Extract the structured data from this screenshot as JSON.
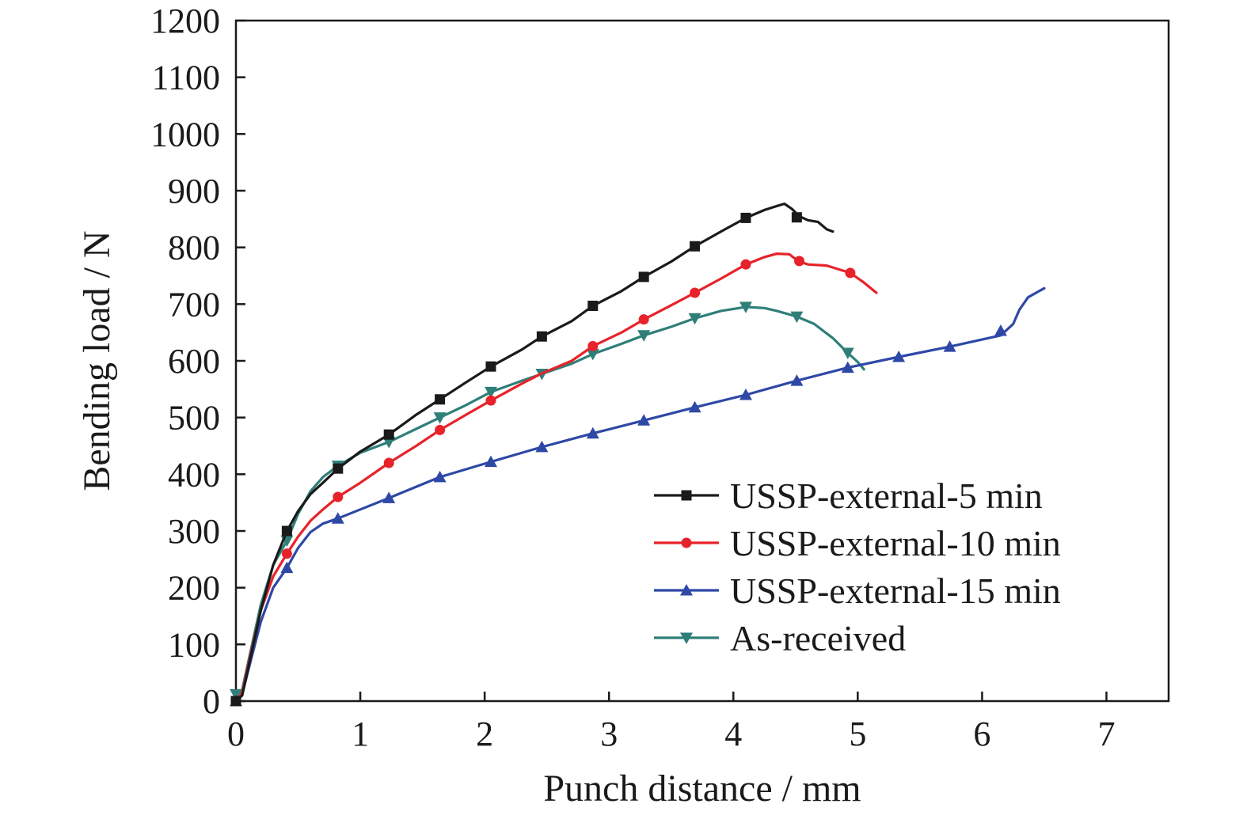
{
  "chart_data": {
    "type": "line",
    "title": "",
    "xlabel": "Punch distance / mm",
    "ylabel": "Bending load / N",
    "xlim": [
      0,
      7.5
    ],
    "ylim": [
      0,
      1200
    ],
    "x_ticks": [
      0,
      1,
      2,
      3,
      4,
      5,
      6,
      7
    ],
    "x_tick_labels": [
      "0",
      "1",
      "2",
      "3",
      "4",
      "5",
      "6",
      "7"
    ],
    "y_ticks": [
      0,
      100,
      200,
      300,
      400,
      500,
      600,
      700,
      800,
      900,
      1000,
      1100,
      1200
    ],
    "y_tick_labels": [
      "0",
      "100",
      "200",
      "300",
      "400",
      "500",
      "600",
      "700",
      "800",
      "900",
      "1000",
      "1100",
      "1200"
    ],
    "grid": false,
    "legend_position": "bottom-right",
    "series": [
      {
        "name": "USSP-external-5 min",
        "color": "#1a1a1a",
        "marker": "square",
        "x": [
          0,
          0.05,
          0.1,
          0.2,
          0.3,
          0.41,
          0.5,
          0.6,
          0.7,
          0.82,
          1.0,
          1.23,
          1.45,
          1.64,
          1.85,
          2.05,
          2.3,
          2.46,
          2.7,
          2.87,
          3.1,
          3.28,
          3.5,
          3.69,
          3.9,
          4.1,
          4.25,
          4.35,
          4.41,
          4.47,
          4.53,
          4.6,
          4.68,
          4.75,
          4.8
        ],
        "y": [
          0,
          10,
          60,
          160,
          240,
          300,
          335,
          365,
          385,
          410,
          440,
          470,
          505,
          532,
          562,
          590,
          620,
          643,
          670,
          697,
          723,
          748,
          775,
          802,
          828,
          852,
          866,
          873,
          877,
          868,
          855,
          848,
          845,
          832,
          828
        ],
        "marker_x": [
          0,
          0.41,
          0.82,
          1.23,
          1.64,
          2.05,
          2.46,
          2.87,
          3.28,
          3.69,
          4.1,
          4.51
        ],
        "marker_y": [
          0,
          300,
          410,
          470,
          532,
          590,
          643,
          697,
          748,
          802,
          852,
          853
        ]
      },
      {
        "name": "USSP-external-10 min",
        "color": "#e8222a",
        "marker": "circle",
        "x": [
          0,
          0.05,
          0.1,
          0.2,
          0.3,
          0.41,
          0.5,
          0.6,
          0.7,
          0.82,
          1.0,
          1.23,
          1.45,
          1.64,
          1.85,
          2.05,
          2.3,
          2.46,
          2.7,
          2.87,
          3.1,
          3.28,
          3.5,
          3.69,
          3.9,
          4.1,
          4.25,
          4.35,
          4.45,
          4.52,
          4.6,
          4.75,
          4.94,
          5.05,
          5.15
        ],
        "y": [
          0,
          15,
          65,
          160,
          220,
          260,
          290,
          318,
          338,
          360,
          385,
          420,
          450,
          478,
          505,
          530,
          560,
          578,
          600,
          626,
          650,
          673,
          698,
          720,
          745,
          770,
          783,
          789,
          788,
          776,
          770,
          768,
          755,
          738,
          720
        ],
        "marker_x": [
          0,
          0.41,
          0.82,
          1.23,
          1.64,
          2.05,
          2.87,
          3.28,
          3.69,
          4.1,
          4.53,
          4.94
        ],
        "marker_y": [
          0,
          260,
          360,
          420,
          478,
          530,
          626,
          673,
          720,
          770,
          776,
          755
        ]
      },
      {
        "name": "USSP-external-15 min",
        "color": "#2e48a6",
        "marker": "triangle-up",
        "x": [
          0,
          0.05,
          0.1,
          0.2,
          0.3,
          0.41,
          0.5,
          0.6,
          0.7,
          0.82,
          1.0,
          1.23,
          1.45,
          1.64,
          2.05,
          2.46,
          2.87,
          3.28,
          3.69,
          4.1,
          4.51,
          4.92,
          5.33,
          5.74,
          6.15,
          6.25,
          6.3,
          6.37,
          6.45,
          6.5
        ],
        "y": [
          0,
          12,
          55,
          140,
          200,
          235,
          270,
          298,
          313,
          322,
          338,
          358,
          378,
          395,
          422,
          448,
          472,
          495,
          518,
          540,
          565,
          588,
          607,
          625,
          645,
          665,
          690,
          712,
          722,
          728
        ],
        "marker_x": [
          0,
          0.41,
          0.82,
          1.23,
          1.64,
          2.05,
          2.46,
          2.87,
          3.28,
          3.69,
          4.1,
          4.51,
          4.92,
          5.33,
          5.74,
          6.15
        ],
        "marker_y": [
          0,
          235,
          322,
          358,
          395,
          422,
          448,
          472,
          495,
          518,
          540,
          565,
          588,
          607,
          625,
          653
        ]
      },
      {
        "name": "As-received",
        "color": "#2f7f78",
        "marker": "triangle-down",
        "x": [
          0,
          0.05,
          0.1,
          0.2,
          0.3,
          0.41,
          0.5,
          0.6,
          0.7,
          0.82,
          1.0,
          1.23,
          1.45,
          1.64,
          1.85,
          2.05,
          2.3,
          2.46,
          2.7,
          2.87,
          3.1,
          3.28,
          3.5,
          3.69,
          3.9,
          4.1,
          4.25,
          4.35,
          4.51,
          4.65,
          4.8,
          4.92,
          5.0,
          5.05
        ],
        "y": [
          10,
          20,
          70,
          170,
          240,
          283,
          330,
          370,
          395,
          415,
          438,
          457,
          480,
          500,
          522,
          545,
          565,
          577,
          595,
          612,
          630,
          645,
          660,
          675,
          688,
          695,
          693,
          688,
          678,
          665,
          640,
          614,
          598,
          585
        ],
        "marker_x": [
          0,
          0.41,
          0.82,
          1.23,
          1.64,
          2.05,
          2.46,
          2.87,
          3.28,
          3.69,
          4.1,
          4.51,
          4.92
        ],
        "marker_y": [
          12,
          283,
          415,
          457,
          500,
          545,
          577,
          612,
          645,
          675,
          695,
          678,
          614
        ]
      }
    ]
  }
}
